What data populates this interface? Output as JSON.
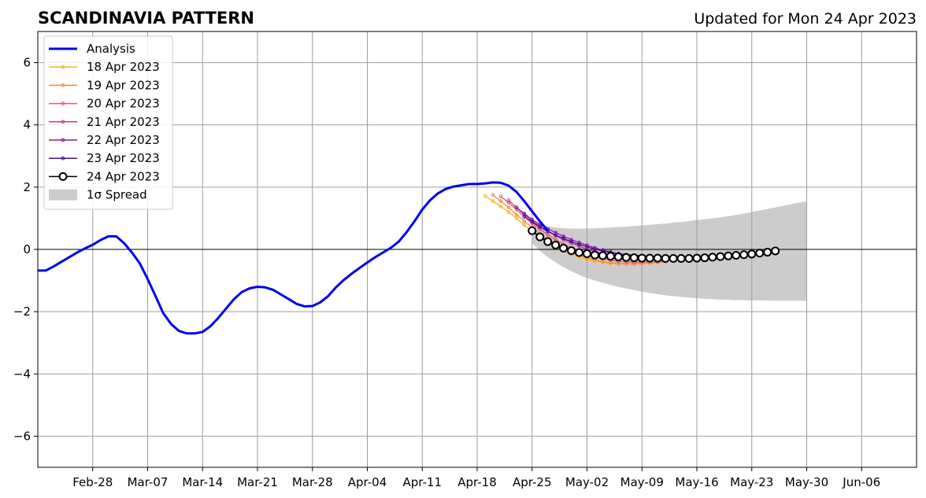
{
  "header": {
    "title": "SCANDINAVIA PATTERN",
    "updated": "Updated for Mon 24 Apr 2023"
  },
  "chart_data": {
    "type": "line",
    "x_axis": {
      "min": "2023-02-21",
      "max": "2023-06-13",
      "ticks": [
        {
          "date": "2023-02-28",
          "label": "Feb-28"
        },
        {
          "date": "2023-03-07",
          "label": "Mar-07"
        },
        {
          "date": "2023-03-14",
          "label": "Mar-14"
        },
        {
          "date": "2023-03-21",
          "label": "Mar-21"
        },
        {
          "date": "2023-03-28",
          "label": "Mar-28"
        },
        {
          "date": "2023-04-04",
          "label": "Apr-04"
        },
        {
          "date": "2023-04-11",
          "label": "Apr-11"
        },
        {
          "date": "2023-04-18",
          "label": "Apr-18"
        },
        {
          "date": "2023-04-25",
          "label": "Apr-25"
        },
        {
          "date": "2023-05-02",
          "label": "May-02"
        },
        {
          "date": "2023-05-09",
          "label": "May-09"
        },
        {
          "date": "2023-05-16",
          "label": "May-16"
        },
        {
          "date": "2023-05-23",
          "label": "May-23"
        },
        {
          "date": "2023-05-30",
          "label": "May-30"
        },
        {
          "date": "2023-06-06",
          "label": "Jun-06"
        }
      ]
    },
    "y_axis": {
      "min": -7,
      "max": 7,
      "ticks": [
        {
          "value": -6,
          "label": "−6"
        },
        {
          "value": -4,
          "label": "−4"
        },
        {
          "value": -2,
          "label": "−2"
        },
        {
          "value": 0,
          "label": "0"
        },
        {
          "value": 2,
          "label": "2"
        },
        {
          "value": 4,
          "label": "4"
        },
        {
          "value": 6,
          "label": "6"
        }
      ]
    },
    "grid": true,
    "legend_position": "top-left",
    "analysis": {
      "name": "Analysis",
      "color": "#0000ee",
      "start": "2023-02-21",
      "values": [
        -0.68,
        -0.68,
        -0.55,
        -0.4,
        -0.25,
        -0.1,
        0.03,
        0.15,
        0.3,
        0.42,
        0.42,
        0.2,
        -0.1,
        -0.45,
        -0.95,
        -1.5,
        -2.05,
        -2.4,
        -2.62,
        -2.7,
        -2.7,
        -2.65,
        -2.47,
        -2.2,
        -1.9,
        -1.6,
        -1.37,
        -1.25,
        -1.2,
        -1.22,
        -1.3,
        -1.45,
        -1.6,
        -1.75,
        -1.83,
        -1.82,
        -1.7,
        -1.5,
        -1.22,
        -0.98,
        -0.78,
        -0.6,
        -0.42,
        -0.25,
        -0.1,
        0.05,
        0.25,
        0.55,
        0.9,
        1.28,
        1.58,
        1.8,
        1.94,
        2.02,
        2.06,
        2.1,
        2.1,
        2.12,
        2.15,
        2.14,
        2.05,
        1.85,
        1.55,
        1.22,
        0.9,
        0.6
      ]
    },
    "forecasts": [
      {
        "name": "18 Apr 2023",
        "color": "#fbb224",
        "start": "2023-04-19",
        "values": [
          1.72,
          1.55,
          1.38,
          1.2,
          1.0,
          0.78,
          0.58,
          0.4,
          0.22,
          0.08,
          -0.05,
          -0.15,
          -0.25,
          -0.33,
          -0.38,
          -0.42,
          -0.45,
          -0.47,
          -0.47,
          -0.47,
          -0.46,
          -0.44,
          -0.42,
          -0.4
        ]
      },
      {
        "name": "19 Apr 2023",
        "color": "#f48b3a",
        "start": "2023-04-20",
        "values": [
          1.75,
          1.55,
          1.35,
          1.12,
          0.9,
          0.7,
          0.5,
          0.32,
          0.16,
          0.03,
          -0.08,
          -0.18,
          -0.27,
          -0.34,
          -0.39,
          -0.43,
          -0.45,
          -0.46,
          -0.46,
          -0.45,
          -0.44,
          -0.42,
          -0.4
        ]
      },
      {
        "name": "20 Apr 2023",
        "color": "#e5586c",
        "start": "2023-04-21",
        "values": [
          1.7,
          1.5,
          1.28,
          1.05,
          0.84,
          0.65,
          0.47,
          0.31,
          0.17,
          0.05,
          -0.06,
          -0.15,
          -0.23,
          -0.3,
          -0.35,
          -0.38,
          -0.4,
          -0.41,
          -0.41,
          -0.4,
          -0.39,
          -0.37
        ]
      },
      {
        "name": "21 Apr 2023",
        "color": "#bc3d8e",
        "start": "2023-04-22",
        "values": [
          1.58,
          1.35,
          1.12,
          0.92,
          0.74,
          0.58,
          0.44,
          0.31,
          0.2,
          0.1,
          0.01,
          -0.07,
          -0.14,
          -0.2,
          -0.25,
          -0.28,
          -0.3,
          -0.31
        ]
      },
      {
        "name": "22 Apr 2023",
        "color": "#8a16aa",
        "start": "2023-04-23",
        "values": [
          1.35,
          1.15,
          0.96,
          0.8,
          0.66,
          0.54,
          0.42,
          0.31,
          0.22,
          0.13,
          0.05,
          -0.02,
          -0.08,
          -0.13,
          -0.17,
          -0.2,
          -0.22,
          -0.23,
          -0.24
        ]
      },
      {
        "name": "23 Apr 2023",
        "color": "#4b0b8c",
        "start": "2023-04-24",
        "values": [
          1.05,
          0.88,
          0.72,
          0.58,
          0.46,
          0.35,
          0.25,
          0.16,
          0.08,
          0.01,
          -0.05,
          -0.1,
          -0.14,
          -0.17,
          -0.19,
          -0.2,
          -0.21
        ]
      },
      {
        "name": "24 Apr 2023",
        "color": "#000000",
        "start": "2023-04-25",
        "marker": "open-circle",
        "values": [
          0.6,
          0.4,
          0.25,
          0.14,
          0.04,
          -0.04,
          -0.1,
          -0.14,
          -0.18,
          -0.2,
          -0.22,
          -0.24,
          -0.26,
          -0.27,
          -0.28,
          -0.28,
          -0.28,
          -0.29,
          -0.29,
          -0.29,
          -0.29,
          -0.28,
          -0.27,
          -0.25,
          -0.23,
          -0.21,
          -0.19,
          -0.17,
          -0.15,
          -0.12,
          -0.09,
          -0.05
        ]
      }
    ],
    "spread": {
      "name": "1σ Spread",
      "color": "#cccccc",
      "start": "2023-04-25",
      "upper": [
        0.95,
        0.82,
        0.74,
        0.7,
        0.68,
        0.67,
        0.67,
        0.67,
        0.68,
        0.69,
        0.7,
        0.72,
        0.73,
        0.75,
        0.77,
        0.79,
        0.81,
        0.83,
        0.86,
        0.88,
        0.91,
        0.94,
        0.97,
        1.0,
        1.03,
        1.07,
        1.11,
        1.15,
        1.2,
        1.25,
        1.3,
        1.35,
        1.4,
        1.45,
        1.5,
        1.55
      ],
      "lower": [
        0.2,
        -0.05,
        -0.25,
        -0.42,
        -0.57,
        -0.7,
        -0.82,
        -0.92,
        -1.0,
        -1.07,
        -1.14,
        -1.2,
        -1.26,
        -1.31,
        -1.36,
        -1.4,
        -1.44,
        -1.47,
        -1.5,
        -1.53,
        -1.55,
        -1.57,
        -1.59,
        -1.6,
        -1.61,
        -1.62,
        -1.63,
        -1.63,
        -1.64,
        -1.64,
        -1.64,
        -1.65,
        -1.65,
        -1.65,
        -1.65,
        -1.65
      ]
    }
  }
}
